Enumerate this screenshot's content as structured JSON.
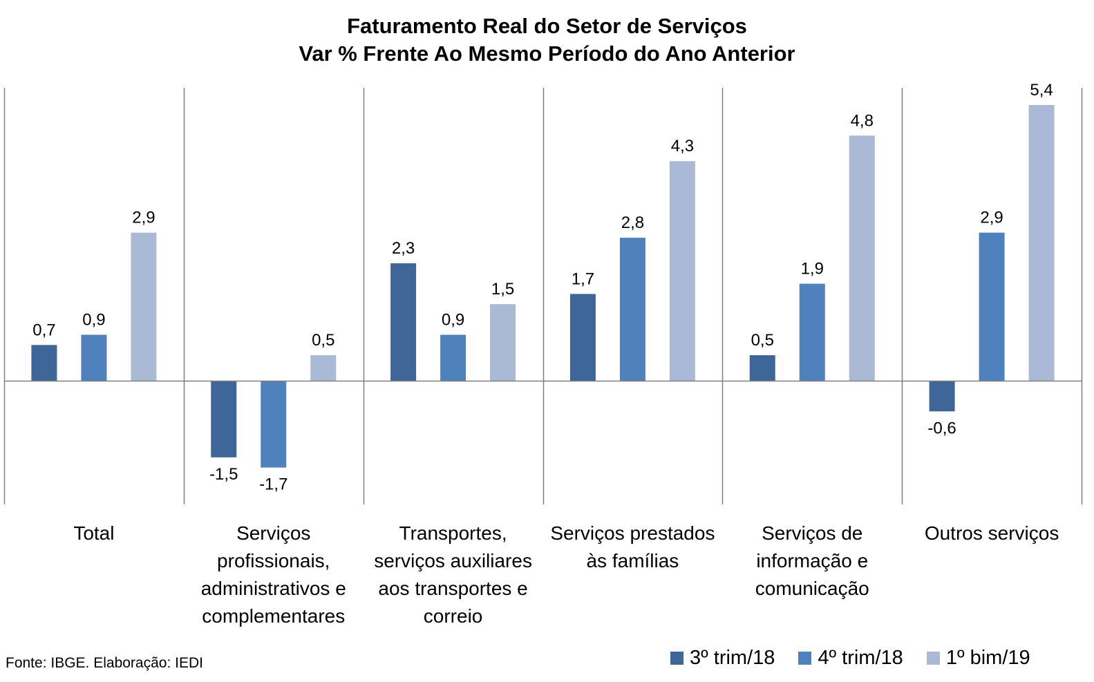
{
  "chart_data": {
    "type": "bar",
    "title": [
      "Faturamento Real do Setor de Serviços",
      "Var % Frente Ao Mesmo Período do Ano Anterior"
    ],
    "categories": [
      [
        "Total"
      ],
      [
        "Serviços",
        "profissionais,",
        "administrativos e",
        "complementares"
      ],
      [
        "Transportes,",
        "serviços auxiliares",
        "aos transportes e",
        "correio"
      ],
      [
        "Serviços prestados",
        "às famílias"
      ],
      [
        "Serviços de",
        "informação e",
        "comunicação"
      ],
      [
        "Outros serviços"
      ]
    ],
    "series": [
      {
        "name": "3º trim/18",
        "color": "#3E6699",
        "values": [
          0.7,
          -1.5,
          2.3,
          1.7,
          0.5,
          -0.6
        ]
      },
      {
        "name": "4º trim/18",
        "color": "#4F81BD",
        "values": [
          0.9,
          -1.7,
          0.9,
          2.8,
          1.9,
          2.9
        ]
      },
      {
        "name": "1º bim/19",
        "color": "#A9B9D6",
        "values": [
          2.9,
          0.5,
          1.5,
          4.3,
          4.8,
          5.4
        ]
      }
    ],
    "value_labels": [
      [
        "0,7",
        "-1,5",
        "2,3",
        "1,7",
        "0,5",
        "-0,6"
      ],
      [
        "0,9",
        "-1,7",
        "0,9",
        "2,8",
        "1,9",
        "2,9"
      ],
      [
        "2,9",
        "0,5",
        "1,5",
        "4,3",
        "4,8",
        "5,4"
      ]
    ],
    "ylim": [
      -2.5,
      6.0
    ],
    "legend_position": "bottom-right",
    "grid": false
  },
  "source_note": "Fonte: IBGE. Elaboração: IEDI"
}
